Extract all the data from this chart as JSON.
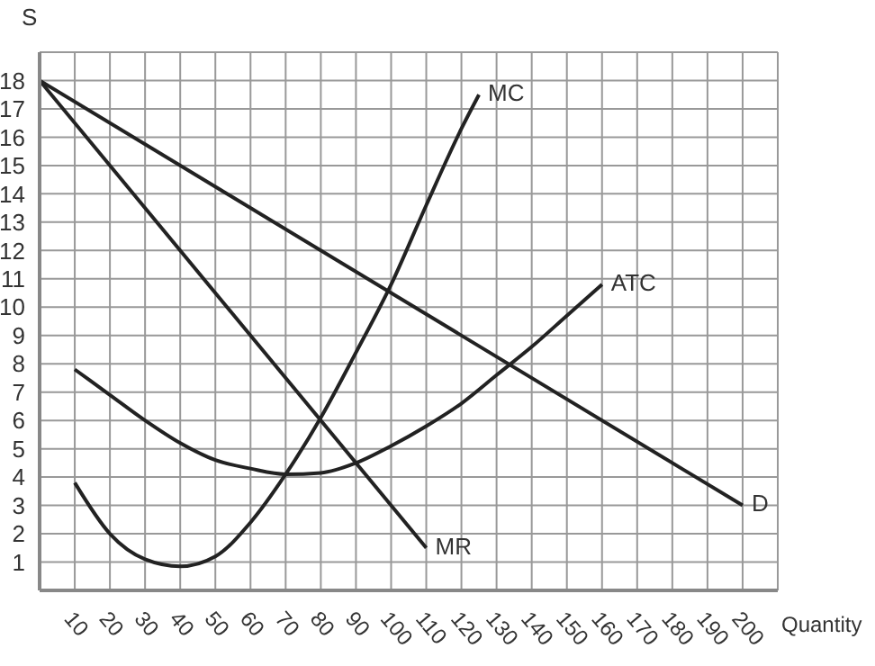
{
  "chart_data": {
    "type": "line",
    "xlabel": "Quantity",
    "ylabel": "S",
    "xlim": [
      0,
      210
    ],
    "ylim": [
      0,
      19
    ],
    "xticks": [
      10,
      20,
      30,
      40,
      50,
      60,
      70,
      80,
      90,
      100,
      110,
      120,
      130,
      140,
      150,
      160,
      170,
      180,
      190,
      200,
      {
        "value": 210,
        "label": null
      }
    ],
    "yticks": [
      1,
      2,
      3,
      4,
      5,
      6,
      7,
      8,
      9,
      10,
      11,
      12,
      13,
      14,
      15,
      16,
      17,
      18,
      {
        "value": 19,
        "label": null
      }
    ],
    "grid": true,
    "marker": "none",
    "line_style": "solid",
    "series": [
      {
        "name": "MC",
        "color": "#222222",
        "x": [
          10,
          20,
          30,
          40,
          50,
          60,
          70,
          80,
          90,
          100,
          110,
          120,
          125
        ],
        "values": [
          3.8,
          2,
          1.1,
          0.85,
          1.2,
          2.4,
          4.1,
          6.1,
          8.4,
          10.8,
          13.6,
          16.3,
          17.5
        ]
      },
      {
        "name": "ATC",
        "color": "#222222",
        "x": [
          10,
          20,
          30,
          40,
          50,
          60,
          70,
          80,
          90,
          100,
          110,
          120,
          130,
          140,
          150,
          160
        ],
        "values": [
          7.8,
          6.9,
          6,
          5.2,
          4.6,
          4.3,
          4.1,
          4.15,
          4.5,
          5.1,
          5.8,
          6.6,
          7.6,
          8.6,
          9.7,
          10.8
        ]
      },
      {
        "name": "MR",
        "color": "#222222",
        "x": [
          0,
          110
        ],
        "values": [
          18,
          1.5
        ]
      },
      {
        "name": "D",
        "color": "#222222",
        "x": [
          0,
          200
        ],
        "values": [
          18,
          3
        ]
      }
    ]
  }
}
